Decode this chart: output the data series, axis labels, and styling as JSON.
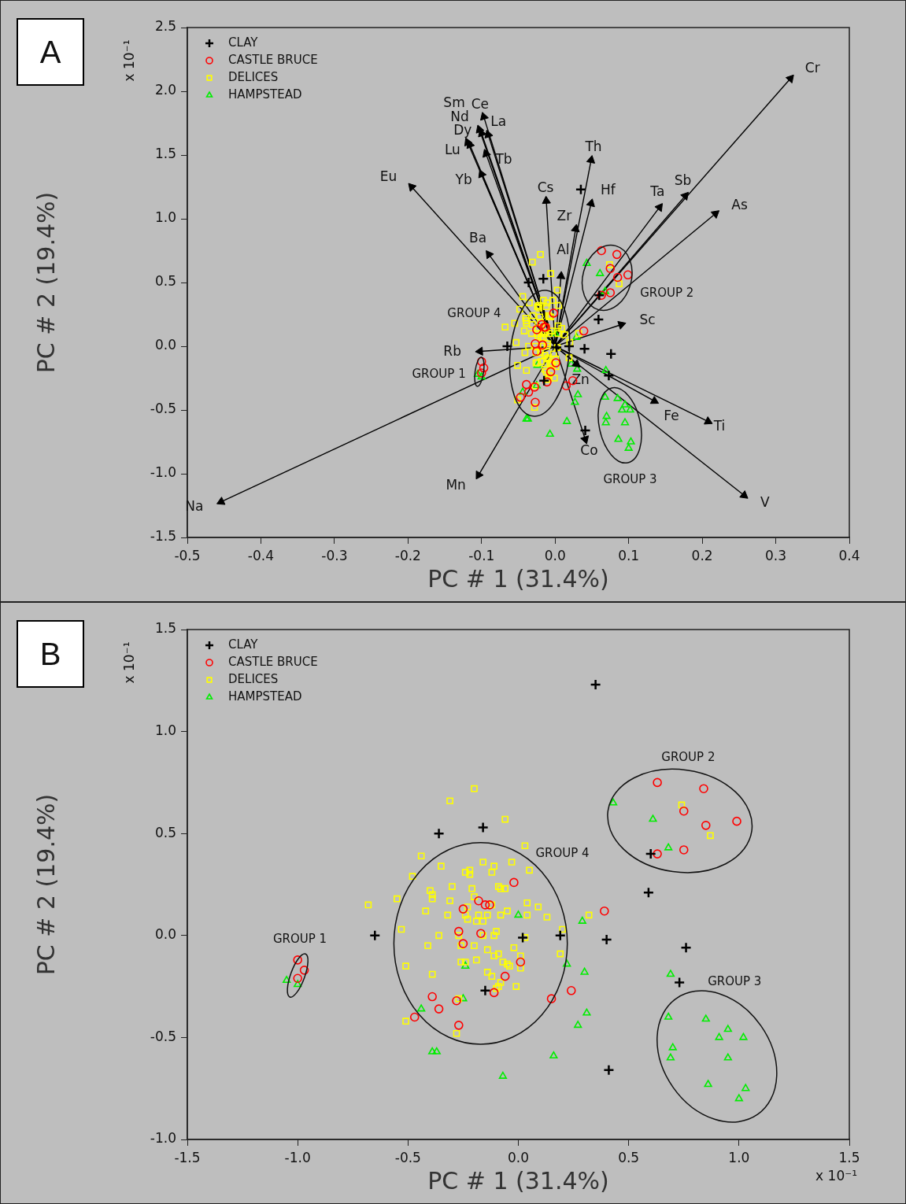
{
  "chart_data": [
    {
      "type": "scatter",
      "title": "A",
      "xlabel": "PC # 1 (31.4%)",
      "ylabel": "PC # 2 (19.4%)",
      "legend": "top left",
      "xlim": [
        -0.5,
        0.4
      ],
      "ylim": [
        -1.5,
        2.5
      ],
      "xticks": [
        -0.5,
        -0.4,
        -0.3,
        -0.2,
        -0.1,
        {
          "value": 0,
          "label": "0.0"
        },
        0.1,
        0.2,
        0.3,
        0.4
      ],
      "yticks": [
        -1.5,
        {
          "value": -1,
          "label": "-1.0"
        },
        -0.5,
        {
          "value": 0,
          "label": "0.0"
        },
        0.5,
        {
          "value": 1,
          "label": "1.0"
        },
        1.5,
        {
          "value": 2,
          "label": "2.0"
        },
        2.5
      ],
      "annotations": [
        "x 10⁻¹",
        "GROUP 1",
        "GROUP 2",
        "GROUP 3",
        "GROUP 4",
        {
          "text": "Cr",
          "x": 0.32,
          "y": 2.1
        },
        {
          "text": "Sb",
          "x": 0.177,
          "y": 1.18
        },
        {
          "text": "As",
          "x": 0.218,
          "y": 1.04
        },
        {
          "text": "Ta",
          "x": 0.142,
          "y": 1.09
        },
        {
          "text": "Th",
          "x": 0.049,
          "y": 1.46
        },
        {
          "text": "Hf",
          "x": 0.049,
          "y": 1.12
        },
        {
          "text": "Zr",
          "x": 0.028,
          "y": 0.92
        },
        {
          "text": "Al",
          "x": 0.008,
          "y": 0.55
        },
        {
          "text": "Cs",
          "x": -0.012,
          "y": 1.14
        },
        {
          "text": "Sc",
          "x": 0.09,
          "y": 0.17
        },
        {
          "text": "Zn",
          "x": 0.029,
          "y": -0.14
        },
        {
          "text": "Fe",
          "x": 0.135,
          "y": -0.43
        },
        {
          "text": "Ti",
          "x": 0.208,
          "y": -0.59
        },
        {
          "text": "V",
          "x": 0.257,
          "y": -1.17
        },
        {
          "text": "Co",
          "x": 0.041,
          "y": -0.73
        },
        {
          "text": "Mn",
          "x": -0.104,
          "y": -1.01
        },
        {
          "text": "Na",
          "x": -0.454,
          "y": -1.22
        },
        {
          "text": "Rb",
          "x": -0.102,
          "y": -0.04
        },
        {
          "text": "Ba",
          "x": -0.09,
          "y": 0.72
        },
        {
          "text": "Eu",
          "x": -0.195,
          "y": 1.25
        },
        {
          "text": "Ce",
          "x": -0.097,
          "y": 1.8
        },
        {
          "text": "Nd",
          "x": -0.103,
          "y": 1.7
        },
        {
          "text": "La",
          "x": -0.091,
          "y": 1.66
        },
        {
          "text": "Sm",
          "x": -0.1,
          "y": 1.67
        },
        {
          "text": "Dy",
          "x": -0.119,
          "y": 1.6
        },
        {
          "text": "Lu",
          "x": -0.116,
          "y": 1.58
        },
        {
          "text": "Tb",
          "x": -0.094,
          "y": 1.51
        },
        {
          "text": "Yb",
          "x": -0.1,
          "y": 1.35
        }
      ],
      "series": [
        {
          "name": "CLAY",
          "type": "scatter",
          "marker": "cross",
          "color": "#000000",
          "x": [
            0.035,
            -0.036,
            -0.016,
            -0.065,
            0.002,
            0.019,
            -0.015,
            0.06,
            0.059,
            0.04,
            0.076,
            0.073,
            0.041
          ],
          "values": [
            1.23,
            0.5,
            0.53,
            0.0,
            -0.01,
            0.0,
            -0.27,
            0.4,
            0.21,
            -0.02,
            -0.06,
            -0.23,
            -0.66
          ]
        },
        {
          "name": "CASTLE BRUCE",
          "type": "scatter",
          "marker": "circle",
          "color": "#ff0000",
          "x": [
            -0.1,
            -0.097,
            -0.1,
            0.063,
            0.084,
            0.075,
            0.099,
            0.085,
            0.075,
            0.063,
            -0.002,
            -0.018,
            -0.015,
            -0.013,
            -0.025,
            -0.027,
            -0.017,
            -0.025,
            0.001,
            -0.006,
            -0.011,
            -0.039,
            -0.028,
            -0.036,
            0.015,
            0.024,
            -0.047,
            -0.027,
            0.039
          ],
          "values": [
            -0.12,
            -0.17,
            -0.21,
            0.75,
            0.72,
            0.61,
            0.56,
            0.54,
            0.42,
            0.4,
            0.26,
            0.17,
            0.15,
            0.15,
            0.13,
            0.02,
            0.01,
            -0.04,
            -0.13,
            -0.2,
            -0.28,
            -0.3,
            -0.32,
            -0.36,
            -0.31,
            -0.27,
            -0.4,
            -0.44,
            0.12
          ]
        },
        {
          "name": "DELICES",
          "type": "scatter",
          "marker": "square",
          "color": "#ffff00",
          "x": [
            -0.02,
            -0.031,
            -0.006,
            0.003,
            -0.044,
            -0.035,
            -0.048,
            -0.016,
            -0.011,
            -0.012,
            -0.003,
            0.005,
            -0.024,
            -0.022,
            -0.022,
            -0.03,
            -0.021,
            -0.04,
            -0.039,
            -0.039,
            -0.055,
            -0.068,
            -0.031,
            -0.02,
            -0.009,
            -0.008,
            -0.006,
            -0.012,
            -0.023,
            -0.042,
            -0.032,
            -0.024,
            -0.023,
            -0.018,
            -0.014,
            -0.019,
            -0.016,
            -0.005,
            -0.008,
            0.004,
            0.009,
            0.004,
            0.013,
            -0.053,
            -0.036,
            -0.027,
            -0.016,
            -0.011,
            -0.01,
            0.003,
            0.02,
            -0.041,
            -0.026,
            -0.02,
            -0.002,
            -0.014,
            -0.011,
            -0.009,
            0.001,
            0.019,
            -0.051,
            -0.026,
            -0.024,
            -0.019,
            -0.007,
            -0.005,
            -0.004,
            0.001,
            -0.039,
            -0.014,
            -0.012,
            -0.008,
            -0.001,
            -0.009,
            -0.01,
            -0.027,
            -0.051,
            -0.028,
            0.032,
            0.074,
            0.087
          ],
          "values": [
            0.72,
            0.66,
            0.57,
            0.44,
            0.39,
            0.34,
            0.29,
            0.36,
            0.34,
            0.31,
            0.36,
            0.32,
            0.31,
            0.32,
            0.3,
            0.24,
            0.23,
            0.22,
            0.2,
            0.18,
            0.18,
            0.15,
            0.17,
            0.19,
            0.24,
            0.23,
            0.23,
            0.15,
            0.14,
            0.12,
            0.1,
            0.1,
            0.08,
            0.1,
            0.1,
            0.07,
            0.07,
            0.12,
            0.1,
            0.16,
            0.14,
            0.1,
            0.09,
            0.03,
            0.0,
            0.0,
            0.0,
            0.0,
            0.02,
            -0.01,
            0.03,
            -0.05,
            -0.05,
            -0.05,
            -0.06,
            -0.07,
            -0.1,
            -0.09,
            -0.1,
            -0.09,
            -0.15,
            -0.13,
            -0.13,
            -0.12,
            -0.13,
            -0.14,
            -0.15,
            -0.16,
            -0.19,
            -0.18,
            -0.2,
            -0.23,
            -0.25,
            -0.25,
            -0.26,
            -0.31,
            -0.42,
            -0.48,
            0.1,
            0.64,
            0.49
          ]
        },
        {
          "name": "HAMPSTEAD",
          "type": "scatter",
          "marker": "triangle",
          "color": "#00ee00",
          "x": [
            -0.105,
            -0.1,
            0.043,
            0.061,
            0.068,
            0.068,
            0.085,
            0.095,
            0.091,
            0.102,
            0.07,
            0.069,
            0.095,
            0.086,
            0.103,
            0.1,
            0.069,
            0.029,
            0.03,
            0.031,
            0.027,
            0.0,
            -0.024,
            -0.025,
            0.022,
            -0.044,
            -0.039,
            -0.037,
            0.016,
            -0.007
          ],
          "values": [
            -0.22,
            -0.24,
            0.65,
            0.57,
            0.43,
            -0.4,
            -0.41,
            -0.46,
            -0.5,
            -0.5,
            -0.55,
            -0.6,
            -0.6,
            -0.73,
            -0.75,
            -0.8,
            -0.19,
            0.07,
            -0.18,
            -0.38,
            -0.44,
            0.1,
            -0.15,
            -0.31,
            -0.14,
            -0.36,
            -0.57,
            -0.57,
            -0.59,
            -0.69
          ]
        },
        {
          "type": "line",
          "color": "#000000",
          "marker": "triangle",
          "x": [
            0,
            0.32
          ],
          "values": [
            0,
            2.1
          ]
        },
        {
          "type": "line",
          "color": "#000000",
          "x": [
            0,
            0.177
          ],
          "values": [
            0,
            1.18
          ]
        },
        {
          "type": "line",
          "color": "#000000",
          "x": [
            0,
            0.218
          ],
          "values": [
            0,
            1.04
          ]
        },
        {
          "type": "line",
          "color": "#000000",
          "x": [
            0,
            0.142
          ],
          "values": [
            0,
            1.09
          ]
        },
        {
          "type": "line",
          "color": "#000000",
          "x": [
            0,
            0.049
          ],
          "values": [
            0,
            1.46
          ]
        },
        {
          "type": "line",
          "color": "#000000",
          "x": [
            0,
            0.049
          ],
          "values": [
            0,
            1.12
          ]
        },
        {
          "type": "line",
          "color": "#000000",
          "x": [
            0,
            0.028
          ],
          "values": [
            0,
            0.92
          ]
        },
        {
          "type": "line",
          "color": "#000000",
          "x": [
            0,
            0.008
          ],
          "values": [
            0,
            0.55
          ]
        },
        {
          "type": "line",
          "color": "#000000",
          "x": [
            0,
            -0.012
          ],
          "values": [
            0,
            1.14
          ]
        },
        {
          "type": "line",
          "color": "#000000",
          "x": [
            0,
            0.09
          ],
          "values": [
            0,
            0.17
          ]
        },
        {
          "type": "line",
          "color": "#000000",
          "x": [
            0,
            0.029
          ],
          "values": [
            0,
            -0.14
          ]
        },
        {
          "type": "line",
          "color": "#000000",
          "x": [
            0,
            0.135
          ],
          "values": [
            0,
            -0.43
          ]
        },
        {
          "type": "line",
          "color": "#000000",
          "x": [
            0,
            0.208
          ],
          "values": [
            0,
            -0.59
          ]
        },
        {
          "type": "line",
          "color": "#000000",
          "x": [
            0,
            0.257
          ],
          "values": [
            0,
            -1.17
          ]
        },
        {
          "type": "line",
          "color": "#000000",
          "x": [
            0,
            0.041
          ],
          "values": [
            0,
            -0.73
          ]
        },
        {
          "type": "line",
          "color": "#000000",
          "x": [
            0,
            -0.104
          ],
          "values": [
            0,
            -1.01
          ]
        },
        {
          "type": "line",
          "color": "#000000",
          "x": [
            0,
            -0.454
          ],
          "values": [
            0,
            -1.22
          ]
        },
        {
          "type": "line",
          "color": "#000000",
          "x": [
            0,
            -0.102
          ],
          "values": [
            0,
            -0.04
          ]
        },
        {
          "type": "line",
          "color": "#000000",
          "x": [
            0,
            -0.09
          ],
          "values": [
            0,
            0.72
          ]
        },
        {
          "type": "line",
          "color": "#000000",
          "x": [
            0,
            -0.195
          ],
          "values": [
            0,
            1.25
          ]
        },
        {
          "type": "line",
          "color": "#000000",
          "x": [
            0,
            -0.097
          ],
          "values": [
            0,
            1.8
          ]
        },
        {
          "type": "line",
          "color": "#000000",
          "x": [
            0,
            -0.103
          ],
          "values": [
            0,
            1.7
          ]
        },
        {
          "type": "line",
          "color": "#000000",
          "x": [
            0,
            -0.091
          ],
          "values": [
            0,
            1.66
          ]
        },
        {
          "type": "line",
          "color": "#000000",
          "x": [
            0,
            -0.1
          ],
          "values": [
            0,
            1.67
          ]
        },
        {
          "type": "line",
          "color": "#000000",
          "x": [
            0,
            -0.119
          ],
          "values": [
            0,
            1.6
          ]
        },
        {
          "type": "line",
          "color": "#000000",
          "x": [
            0,
            -0.116
          ],
          "values": [
            0,
            1.58
          ]
        },
        {
          "type": "line",
          "color": "#000000",
          "x": [
            0,
            -0.094
          ],
          "values": [
            0,
            1.51
          ]
        },
        {
          "type": "line",
          "color": "#000000",
          "x": [
            0,
            -0.1
          ],
          "values": [
            0,
            1.35
          ]
        }
      ]
    },
    {
      "type": "scatter",
      "title": "B",
      "xlabel": "PC # 1 (31.4%)",
      "ylabel": "PC # 2 (19.4%)",
      "legend": "top left",
      "xlim": [
        -1.5,
        1.5
      ],
      "ylim": [
        -1,
        1.5
      ],
      "xticks": [
        -1.5,
        {
          "value": -1,
          "label": "-1.0"
        },
        -0.5,
        {
          "value": 0,
          "label": "0.0"
        },
        0.5,
        {
          "value": 1,
          "label": "1.0"
        },
        1.5
      ],
      "yticks": [
        {
          "value": -1,
          "label": "-1.0"
        },
        -0.5,
        {
          "value": 0,
          "label": "0.0"
        },
        0.5,
        {
          "value": 1,
          "label": "1.0"
        },
        1.5
      ],
      "annotations": [
        "x 10⁻¹",
        "x 10⁻¹",
        "GROUP 1",
        "GROUP 2",
        "GROUP 3",
        "GROUP 4"
      ],
      "series": [
        {
          "name": "CLAY",
          "type": "scatter",
          "marker": "cross",
          "color": "#000000",
          "x": [
            0.35,
            -0.36,
            -0.16,
            -0.65,
            0.02,
            0.19,
            -0.15,
            0.6,
            0.59,
            0.4,
            0.76,
            0.73,
            0.41
          ],
          "values": [
            1.23,
            0.5,
            0.53,
            0.0,
            -0.01,
            0.0,
            -0.27,
            0.4,
            0.21,
            -0.02,
            -0.06,
            -0.23,
            -0.66
          ]
        },
        {
          "name": "CASTLE BRUCE",
          "type": "scatter",
          "marker": "circle",
          "color": "#ff0000",
          "x": [
            -1.0,
            -0.97,
            -1.0,
            0.63,
            0.84,
            0.75,
            0.99,
            0.85,
            0.75,
            0.63,
            -0.02,
            -0.18,
            -0.15,
            -0.13,
            -0.25,
            -0.27,
            -0.17,
            -0.25,
            0.01,
            -0.06,
            -0.11,
            -0.39,
            -0.28,
            -0.36,
            0.15,
            0.24,
            -0.47,
            -0.27,
            0.39
          ],
          "values": [
            -0.12,
            -0.17,
            -0.21,
            0.75,
            0.72,
            0.61,
            0.56,
            0.54,
            0.42,
            0.4,
            0.26,
            0.17,
            0.15,
            0.15,
            0.13,
            0.02,
            0.01,
            -0.04,
            -0.13,
            -0.2,
            -0.28,
            -0.3,
            -0.32,
            -0.36,
            -0.31,
            -0.27,
            -0.4,
            -0.44,
            0.12
          ]
        },
        {
          "name": "DELICES",
          "type": "scatter",
          "marker": "square",
          "color": "#ffff00",
          "x": [
            -0.2,
            -0.31,
            -0.06,
            0.03,
            -0.44,
            -0.35,
            -0.48,
            -0.16,
            -0.11,
            -0.12,
            -0.03,
            0.05,
            -0.24,
            -0.22,
            -0.22,
            -0.3,
            -0.21,
            -0.4,
            -0.39,
            -0.39,
            -0.55,
            -0.68,
            -0.31,
            -0.2,
            -0.09,
            -0.08,
            -0.06,
            -0.12,
            -0.23,
            -0.42,
            -0.32,
            -0.24,
            -0.23,
            -0.18,
            -0.14,
            -0.19,
            -0.16,
            -0.05,
            -0.08,
            0.04,
            0.09,
            0.04,
            0.13,
            -0.53,
            -0.36,
            -0.27,
            -0.16,
            -0.11,
            -0.1,
            0.03,
            0.2,
            -0.41,
            -0.26,
            -0.2,
            -0.02,
            -0.14,
            -0.11,
            -0.09,
            0.01,
            0.19,
            -0.51,
            -0.26,
            -0.24,
            -0.19,
            -0.07,
            -0.05,
            -0.04,
            0.01,
            -0.39,
            -0.14,
            -0.12,
            -0.08,
            -0.01,
            -0.09,
            -0.1,
            -0.27,
            -0.51,
            -0.28,
            0.32,
            0.74,
            0.87
          ],
          "values": [
            0.72,
            0.66,
            0.57,
            0.44,
            0.39,
            0.34,
            0.29,
            0.36,
            0.34,
            0.31,
            0.36,
            0.32,
            0.31,
            0.32,
            0.3,
            0.24,
            0.23,
            0.22,
            0.2,
            0.18,
            0.18,
            0.15,
            0.17,
            0.19,
            0.24,
            0.23,
            0.23,
            0.15,
            0.14,
            0.12,
            0.1,
            0.1,
            0.08,
            0.1,
            0.1,
            0.07,
            0.07,
            0.12,
            0.1,
            0.16,
            0.14,
            0.1,
            0.09,
            0.03,
            0.0,
            0.0,
            0.0,
            0.0,
            0.02,
            -0.01,
            0.03,
            -0.05,
            -0.05,
            -0.05,
            -0.06,
            -0.07,
            -0.1,
            -0.09,
            -0.1,
            -0.09,
            -0.15,
            -0.13,
            -0.13,
            -0.12,
            -0.13,
            -0.14,
            -0.15,
            -0.16,
            -0.19,
            -0.18,
            -0.2,
            -0.23,
            -0.25,
            -0.25,
            -0.26,
            -0.31,
            -0.42,
            -0.48,
            0.1,
            0.64,
            0.49
          ]
        },
        {
          "name": "HAMPSTEAD",
          "type": "scatter",
          "marker": "triangle",
          "color": "#00ee00",
          "x": [
            -1.05,
            -1.0,
            0.43,
            0.61,
            0.68,
            0.68,
            0.85,
            0.95,
            0.91,
            1.02,
            0.7,
            0.69,
            0.95,
            0.86,
            1.03,
            1.0,
            0.69,
            0.29,
            0.3,
            0.31,
            0.27,
            0.0,
            -0.24,
            -0.25,
            0.22,
            -0.44,
            -0.39,
            -0.37,
            0.16,
            -0.07
          ],
          "values": [
            -0.22,
            -0.24,
            0.65,
            0.57,
            0.43,
            -0.4,
            -0.41,
            -0.46,
            -0.5,
            -0.5,
            -0.55,
            -0.6,
            -0.6,
            -0.73,
            -0.75,
            -0.8,
            -0.19,
            0.07,
            -0.18,
            -0.38,
            -0.44,
            0.1,
            -0.15,
            -0.31,
            -0.14,
            -0.36,
            -0.57,
            -0.57,
            -0.59,
            -0.69
          ]
        }
      ]
    }
  ]
}
